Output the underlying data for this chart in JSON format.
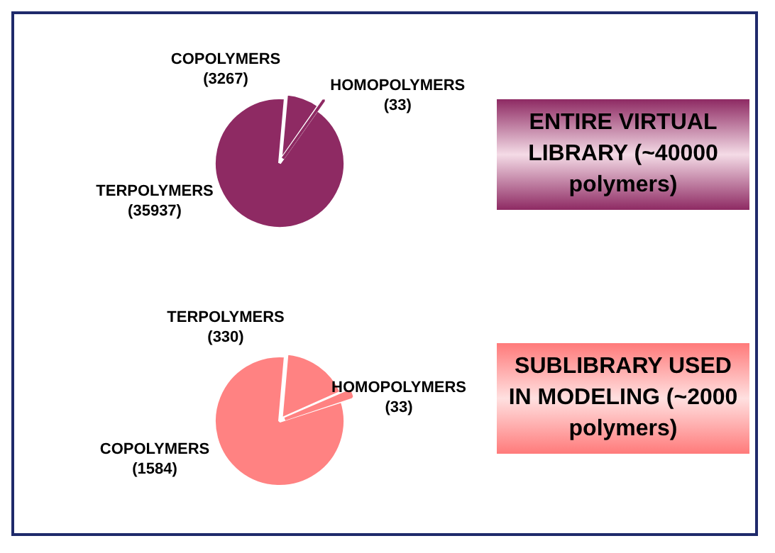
{
  "chart_data": [
    {
      "type": "pie",
      "title": "ENTIRE VIRTUAL LIBRARY (~40000 polymers)",
      "categories": [
        "TERPOLYMERS",
        "COPOLYMERS",
        "HOMOPOLYMERS"
      ],
      "values": [
        35937,
        3267,
        33
      ],
      "value_labels": [
        "(35937)",
        "(3267)",
        "(33)"
      ],
      "colors": [
        "#8e2a63",
        "#8e2a63",
        "#8e2a63"
      ]
    },
    {
      "type": "pie",
      "title": "SUBLIBRARY USED IN MODELING (~2000 polymers)",
      "categories": [
        "COPOLYMERS",
        "TERPOLYMERS",
        "HOMOPOLYMERS"
      ],
      "values": [
        1584,
        330,
        33
      ],
      "value_labels": [
        "(1584)",
        "(330)",
        "(33)"
      ],
      "colors": [
        "#ff8282",
        "#ff8282",
        "#ff8282"
      ]
    }
  ]
}
